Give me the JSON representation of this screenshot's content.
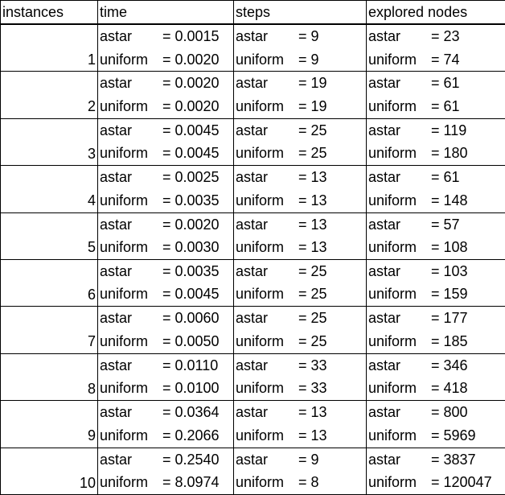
{
  "columns": [
    "instances",
    "time",
    "steps",
    "explored nodes"
  ],
  "label_astar": "astar",
  "label_uniform": "uniform",
  "rows": [
    {
      "instance": "1",
      "time_astar": "= 0.0015",
      "time_uniform": "= 0.0020",
      "steps_astar": "= 9",
      "steps_uniform": "= 9",
      "nodes_astar": "= 23",
      "nodes_uniform": "= 74"
    },
    {
      "instance": "2",
      "time_astar": "= 0.0020",
      "time_uniform": "= 0.0020",
      "steps_astar": "= 19",
      "steps_uniform": "= 19",
      "nodes_astar": "= 61",
      "nodes_uniform": "= 61"
    },
    {
      "instance": "3",
      "time_astar": "= 0.0045",
      "time_uniform": "= 0.0045",
      "steps_astar": "= 25",
      "steps_uniform": "= 25",
      "nodes_astar": "= 119",
      "nodes_uniform": "= 180"
    },
    {
      "instance": "4",
      "time_astar": "= 0.0025",
      "time_uniform": "= 0.0035",
      "steps_astar": "= 13",
      "steps_uniform": "= 13",
      "nodes_astar": "= 61",
      "nodes_uniform": "= 148"
    },
    {
      "instance": "5",
      "time_astar": "= 0.0020",
      "time_uniform": "= 0.0030",
      "steps_astar": "= 13",
      "steps_uniform": "= 13",
      "nodes_astar": "= 57",
      "nodes_uniform": "= 108"
    },
    {
      "instance": "6",
      "time_astar": "= 0.0035",
      "time_uniform": "= 0.0045",
      "steps_astar": "= 25",
      "steps_uniform": "= 25",
      "nodes_astar": "= 103",
      "nodes_uniform": "= 159"
    },
    {
      "instance": "7",
      "time_astar": "= 0.0060",
      "time_uniform": "= 0.0050",
      "steps_astar": "= 25",
      "steps_uniform": "= 25",
      "nodes_astar": "= 177",
      "nodes_uniform": "= 185"
    },
    {
      "instance": "8",
      "time_astar": "= 0.0110",
      "time_uniform": "= 0.0100",
      "steps_astar": "= 33",
      "steps_uniform": "= 33",
      "nodes_astar": "= 346",
      "nodes_uniform": "= 418"
    },
    {
      "instance": "9",
      "time_astar": "= 0.0364",
      "time_uniform": "= 0.2066",
      "steps_astar": "= 13",
      "steps_uniform": "= 13",
      "nodes_astar": "= 800",
      "nodes_uniform": "= 5969"
    },
    {
      "instance": "10",
      "time_astar": "= 0.2540",
      "time_uniform": "= 8.0974",
      "steps_astar": "= 9",
      "steps_uniform": "= 8",
      "nodes_astar": "= 3837",
      "nodes_uniform": "= 120047"
    }
  ]
}
